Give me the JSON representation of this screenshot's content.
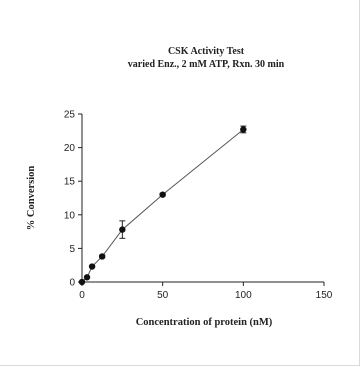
{
  "chart_data": {
    "type": "scatter",
    "title": "CSK Activity Test",
    "subtitle": "varied Enz., 2 mM ATP, Rxn. 30 min",
    "xlabel": "Concentration of protein (nM)",
    "ylabel": "% Conversion",
    "xlim": [
      0,
      150
    ],
    "ylim": [
      0,
      25
    ],
    "xticks": [
      "0",
      "50",
      "100",
      "150"
    ],
    "yticks": [
      "0",
      "5",
      "10",
      "15",
      "20",
      "25"
    ],
    "grid": false,
    "line_color": "#555555",
    "marker_color": "#111111",
    "series": [
      {
        "x": [
          0,
          3.125,
          6.25,
          12.5,
          25,
          50,
          100
        ],
        "y": [
          0,
          0.7,
          2.3,
          3.8,
          7.8,
          13.0,
          22.7
        ],
        "yerr": [
          0,
          0,
          0.1,
          0.2,
          1.3,
          0.2,
          0.5
        ]
      }
    ]
  }
}
